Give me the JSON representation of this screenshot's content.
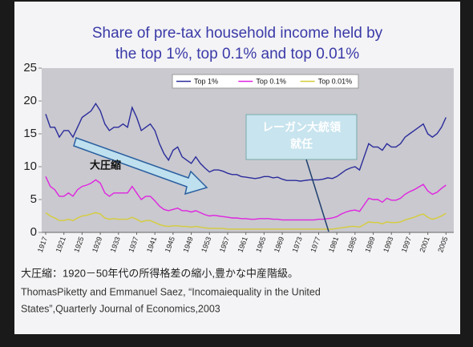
{
  "chart_data": {
    "type": "line",
    "title": [
      "Share of pre-tax household income held by",
      "the top 1%, top 0.1% and top 0.01%"
    ],
    "x": [
      1917,
      1918,
      1919,
      1920,
      1921,
      1922,
      1923,
      1924,
      1925,
      1926,
      1927,
      1928,
      1929,
      1930,
      1931,
      1932,
      1933,
      1934,
      1935,
      1936,
      1937,
      1938,
      1939,
      1940,
      1941,
      1942,
      1943,
      1944,
      1945,
      1946,
      1947,
      1948,
      1949,
      1950,
      1951,
      1952,
      1953,
      1954,
      1955,
      1956,
      1957,
      1958,
      1959,
      1960,
      1961,
      1962,
      1963,
      1964,
      1965,
      1966,
      1967,
      1968,
      1969,
      1970,
      1971,
      1972,
      1973,
      1974,
      1975,
      1976,
      1977,
      1978,
      1979,
      1980,
      1981,
      1982,
      1983,
      1984,
      1985,
      1986,
      1987,
      1988,
      1989,
      1990,
      1991,
      1992,
      1993,
      1994,
      1995,
      1996,
      1997,
      1998,
      1999,
      2000,
      2001,
      2002,
      2003,
      2004,
      2005
    ],
    "series": [
      {
        "name": "Top 1%",
        "color": "#2b2b9c",
        "values": [
          18,
          16,
          16,
          14.5,
          15.5,
          15.5,
          14.5,
          16,
          17.5,
          18,
          18.5,
          19.6,
          18.5,
          16.5,
          15.5,
          16,
          16,
          16.5,
          16,
          19,
          17.5,
          15.5,
          16,
          16.5,
          15.5,
          13.5,
          12,
          11,
          12.5,
          13,
          11.5,
          11,
          10.5,
          11.5,
          10.5,
          9.8,
          9.2,
          9.5,
          9.5,
          9.3,
          9,
          8.8,
          8.8,
          8.5,
          8.4,
          8.3,
          8.2,
          8.3,
          8.5,
          8.5,
          8.3,
          8.4,
          8.1,
          7.9,
          7.9,
          7.9,
          7.8,
          7.9,
          8,
          8,
          8,
          8.1,
          8.3,
          8.2,
          8.5,
          9,
          9.5,
          9.8,
          10,
          9.5,
          11.5,
          13.5,
          13,
          13,
          12.5,
          13.5,
          13,
          13,
          13.5,
          14.5,
          15,
          15.5,
          16,
          16.5,
          15,
          14.5,
          15,
          16,
          17.5
        ]
      },
      {
        "name": "Top 0.1%",
        "color": "#e024e0",
        "values": [
          8.5,
          7,
          6.5,
          5.5,
          5.5,
          6,
          5.5,
          6.5,
          7,
          7.2,
          7.5,
          8,
          7.5,
          6,
          5.5,
          6,
          6,
          6,
          6,
          7,
          6,
          5,
          5.5,
          5.5,
          4.8,
          4,
          3.5,
          3.3,
          3.5,
          3.7,
          3.3,
          3.3,
          3.1,
          3.3,
          3,
          2.7,
          2.5,
          2.6,
          2.5,
          2.4,
          2.3,
          2.2,
          2.2,
          2.1,
          2.1,
          2,
          2,
          2.1,
          2.1,
          2.1,
          2,
          2,
          1.9,
          1.9,
          1.9,
          1.9,
          1.9,
          1.9,
          1.9,
          1.9,
          2,
          2,
          2.1,
          2.2,
          2.4,
          2.8,
          3.1,
          3.3,
          3.4,
          3.2,
          4.2,
          5.2,
          5,
          5,
          4.6,
          5.2,
          4.9,
          4.9,
          5.2,
          5.8,
          6.2,
          6.5,
          6.9,
          7.3,
          6.3,
          5.8,
          6.1,
          6.7,
          7.2
        ]
      },
      {
        "name": "Top 0.01%",
        "color": "#d6cc3a",
        "values": [
          3,
          2.5,
          2.2,
          1.8,
          1.8,
          2,
          1.8,
          2.2,
          2.5,
          2.6,
          2.8,
          3,
          2.8,
          2.2,
          2,
          2.1,
          2,
          2,
          2,
          2.3,
          2,
          1.6,
          1.8,
          1.8,
          1.5,
          1.2,
          1,
          0.9,
          1,
          1,
          0.9,
          0.9,
          0.8,
          0.9,
          0.8,
          0.7,
          0.6,
          0.6,
          0.6,
          0.6,
          0.5,
          0.5,
          0.5,
          0.5,
          0.5,
          0.5,
          0.5,
          0.5,
          0.5,
          0.5,
          0.5,
          0.5,
          0.5,
          0.5,
          0.5,
          0.5,
          0.5,
          0.5,
          0.5,
          0.5,
          0.5,
          0.5,
          0.5,
          0.5,
          0.6,
          0.7,
          0.8,
          0.9,
          0.9,
          0.8,
          1.2,
          1.6,
          1.5,
          1.5,
          1.3,
          1.6,
          1.5,
          1.5,
          1.6,
          1.9,
          2.1,
          2.3,
          2.6,
          2.8,
          2.3,
          2,
          2.2,
          2.5,
          2.9
        ]
      }
    ],
    "xlim": [
      1917,
      2006
    ],
    "xticks": [
      1917,
      1921,
      1925,
      1929,
      1933,
      1937,
      1941,
      1945,
      1949,
      1953,
      1957,
      1961,
      1965,
      1969,
      1973,
      1977,
      1981,
      1985,
      1989,
      1993,
      1997,
      2001,
      2005
    ],
    "ylim": [
      0,
      25
    ],
    "yticks": [
      0,
      5,
      10,
      15,
      20,
      25
    ],
    "grid": false,
    "legend": "top",
    "annotations": [
      {
        "text": [
          "大圧縮"
        ]
      },
      {
        "text": [
          "レーガン大統領",
          "就任"
        ]
      }
    ],
    "source": [
      "大圧縮：1920－50年代の所得格差の縮小,豊かな中産階級。",
      "ThomasPiketty and Emmanuel Saez, “Incomaiequality in the United",
      "States”,Quarterly Journal of Economics,2003"
    ]
  }
}
